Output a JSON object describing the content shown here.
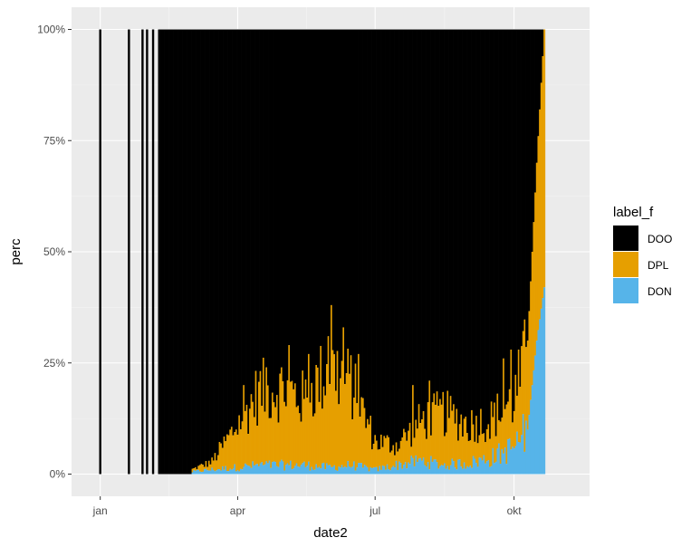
{
  "chart_data": {
    "type": "bar",
    "subtype": "stacked-percent",
    "title": "",
    "xlabel": "date2",
    "ylabel": "perc",
    "x_axis": {
      "type": "date",
      "ticks": [
        {
          "date": "2020-01-01",
          "label": "jan"
        },
        {
          "date": "2020-04-01",
          "label": "apr"
        },
        {
          "date": "2020-07-01",
          "label": "jul"
        },
        {
          "date": "2020-10-01",
          "label": "okt"
        }
      ],
      "range": [
        "2019-12-13",
        "2020-11-20"
      ]
    },
    "y_axis": {
      "range": [
        0,
        1
      ],
      "ticks": [
        {
          "value": 0,
          "label": "0%"
        },
        {
          "value": 0.25,
          "label": "25%"
        },
        {
          "value": 0.5,
          "label": "50%"
        },
        {
          "value": 0.75,
          "label": "75%"
        },
        {
          "value": 1,
          "label": "100%"
        }
      ]
    },
    "grid": true,
    "legend": {
      "title": "label_f",
      "position": "right",
      "items": [
        {
          "name": "DOO",
          "color": "#000000"
        },
        {
          "name": "DPL",
          "color": "#E69F00"
        },
        {
          "name": "DON",
          "color": "#56B4E9"
        }
      ]
    },
    "colors": {
      "DOO": "#000000",
      "DPL": "#E69F00",
      "DON": "#56B4E9",
      "panel": "#EBEBEB",
      "grid_major": "#FFFFFF",
      "grid_minor": "#F5F5F5"
    },
    "isolated_days": [
      "2020-01-01",
      "2020-01-20",
      "2020-01-29",
      "2020-02-01",
      "2020-02-05",
      "2020-02-09"
    ],
    "segments": [
      {
        "start": "2020-02-10",
        "end": "2020-03-01",
        "DPL_start": 0.0,
        "DPL_end": 0.0,
        "DON_start": 0.0,
        "DON_end": 0.0
      },
      {
        "start": "2020-03-01",
        "end": "2020-03-15",
        "DPL_start": 0.01,
        "DPL_end": 0.03,
        "DON_start": 0.005,
        "DON_end": 0.01
      },
      {
        "start": "2020-03-15",
        "end": "2020-04-01",
        "DPL_start": 0.03,
        "DPL_end": 0.12,
        "DON_start": 0.01,
        "DON_end": 0.015
      },
      {
        "start": "2020-04-01",
        "end": "2020-04-15",
        "DPL_start": 0.12,
        "DPL_end": 0.2,
        "DON_start": 0.015,
        "DON_end": 0.02
      },
      {
        "start": "2020-04-15",
        "end": "2020-05-01",
        "DPL_start": 0.2,
        "DPL_end": 0.21,
        "DON_start": 0.02,
        "DON_end": 0.02
      },
      {
        "start": "2020-05-01",
        "end": "2020-05-15",
        "DPL_start": 0.21,
        "DPL_end": 0.18,
        "DON_start": 0.02,
        "DON_end": 0.02
      },
      {
        "start": "2020-05-15",
        "end": "2020-06-01",
        "DPL_start": 0.18,
        "DPL_end": 0.26,
        "DON_start": 0.02,
        "DON_end": 0.015
      },
      {
        "start": "2020-06-01",
        "end": "2020-06-15",
        "DPL_start": 0.26,
        "DPL_end": 0.22,
        "DON_start": 0.015,
        "DON_end": 0.02
      },
      {
        "start": "2020-06-15",
        "end": "2020-07-01",
        "DPL_start": 0.22,
        "DPL_end": 0.08,
        "DON_start": 0.02,
        "DON_end": 0.01
      },
      {
        "start": "2020-07-01",
        "end": "2020-07-15",
        "DPL_start": 0.08,
        "DPL_end": 0.07,
        "DON_start": 0.01,
        "DON_end": 0.02
      },
      {
        "start": "2020-07-15",
        "end": "2020-08-01",
        "DPL_start": 0.07,
        "DPL_end": 0.13,
        "DON_start": 0.02,
        "DON_end": 0.03
      },
      {
        "start": "2020-08-01",
        "end": "2020-08-15",
        "DPL_start": 0.13,
        "DPL_end": 0.15,
        "DON_start": 0.03,
        "DON_end": 0.02
      },
      {
        "start": "2020-08-15",
        "end": "2020-09-01",
        "DPL_start": 0.15,
        "DPL_end": 0.12,
        "DON_start": 0.02,
        "DON_end": 0.025
      },
      {
        "start": "2020-09-01",
        "end": "2020-09-15",
        "DPL_start": 0.12,
        "DPL_end": 0.13,
        "DON_start": 0.025,
        "DON_end": 0.035
      },
      {
        "start": "2020-09-15",
        "end": "2020-10-01",
        "DPL_start": 0.13,
        "DPL_end": 0.18,
        "DON_start": 0.035,
        "DON_end": 0.06
      },
      {
        "start": "2020-10-01",
        "end": "2020-10-10",
        "DPL_start": 0.18,
        "DPL_end": 0.3,
        "DON_start": 0.06,
        "DON_end": 0.1
      },
      {
        "start": "2020-10-10",
        "end": "2020-10-16",
        "DPL_start": 0.3,
        "DPL_end": 0.7,
        "DON_start": 0.1,
        "DON_end": 0.3
      },
      {
        "start": "2020-10-16",
        "end": "2020-10-21",
        "DPL_start": 0.7,
        "DPL_end": 1.0,
        "DON_start": 0.3,
        "DON_end": 0.42
      }
    ],
    "peaks": [
      {
        "date": "2020-04-05",
        "DPL": 0.2
      },
      {
        "date": "2020-04-20",
        "DPL": 0.24
      },
      {
        "date": "2020-05-05",
        "DPL": 0.29
      },
      {
        "date": "2020-05-18",
        "DPL": 0.27
      },
      {
        "date": "2020-05-31",
        "DPL": 0.31
      },
      {
        "date": "2020-06-02",
        "DPL": 0.38
      },
      {
        "date": "2020-06-10",
        "DPL": 0.33
      },
      {
        "date": "2020-06-20",
        "DPL": 0.27
      },
      {
        "date": "2020-07-26",
        "DPL": 0.2
      },
      {
        "date": "2020-08-06",
        "DPL": 0.21
      },
      {
        "date": "2020-09-24",
        "DPL": 0.26
      },
      {
        "date": "2020-09-29",
        "DPL": 0.28
      }
    ]
  }
}
